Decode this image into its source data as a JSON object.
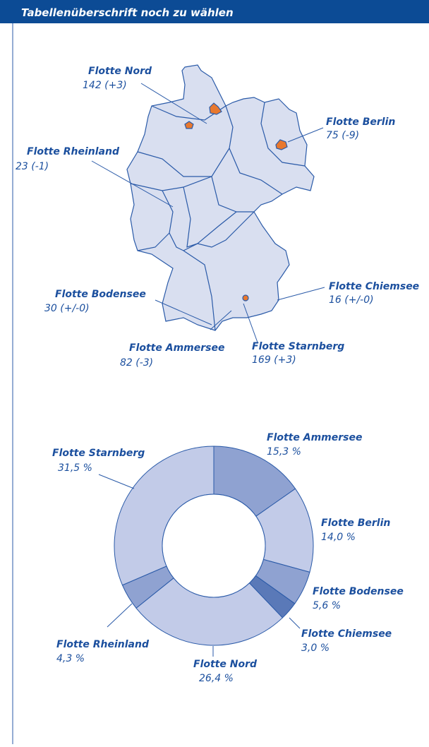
{
  "header": {
    "title": "Tabellenüberschrift noch zu wählen"
  },
  "map": {
    "locations": [
      {
        "name": "Flotte Nord",
        "value": "142 (+3)"
      },
      {
        "name": "Flotte Berlin",
        "value": "75 (-9)"
      },
      {
        "name": "Flotte Rheinland",
        "value": "23 (-1)"
      },
      {
        "name": "Flotte Bodensee",
        "value": "30 (+/-0)"
      },
      {
        "name": "Flotte Chiemsee",
        "value": "16 (+/-0)"
      },
      {
        "name": "Flotte Ammersee",
        "value": "82 (-3)"
      },
      {
        "name": "Flotte Starnberg",
        "value": "169 (+3)"
      }
    ]
  },
  "chart_data": {
    "type": "donut",
    "categories": [
      "Flotte Ammersee",
      "Flotte Berlin",
      "Flotte Bodensee",
      "Flotte Chiemsee",
      "Flotte Nord",
      "Flotte Rheinland",
      "Flotte Starnberg"
    ],
    "values": [
      15.3,
      14.0,
      5.6,
      3.0,
      26.4,
      4.3,
      31.5
    ],
    "value_labels": [
      "15,3 %",
      "14,0 %",
      "5,6 %",
      "3,0 %",
      "26,4 %",
      "4,3 %",
      "31,5 %"
    ],
    "colors": [
      "#8fa2d1",
      "#c2cbe8",
      "#8fa2d1",
      "#5a79b8",
      "#c2cbe8",
      "#8fa2d1",
      "#c2cbe8"
    ]
  }
}
